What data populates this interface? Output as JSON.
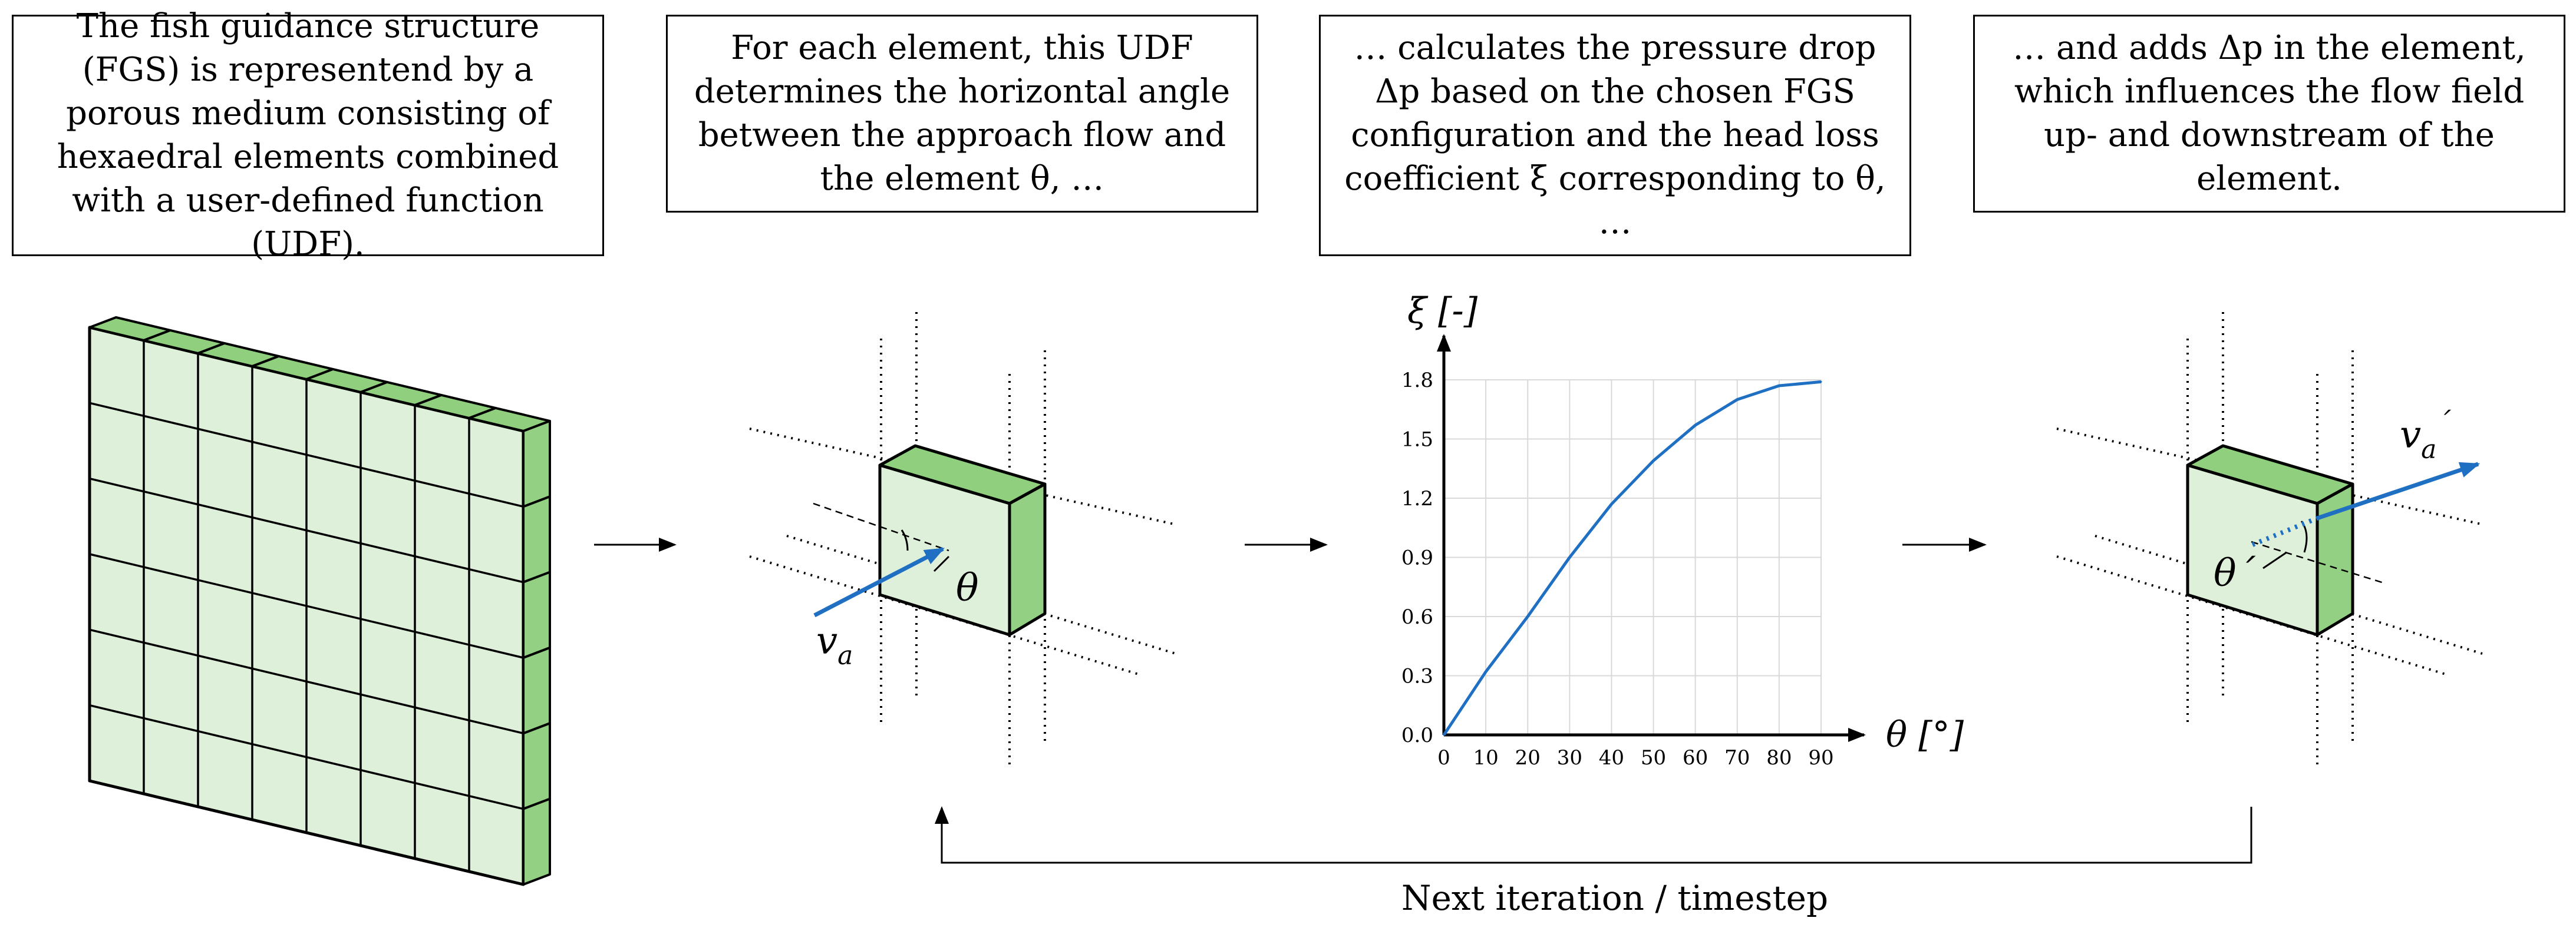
{
  "step_boxes": [
    {
      "text": "The fish guidance structure (FGS) is representend by a porous medium consisting of hexaedral elements combined with a user-defined function (UDF)."
    },
    {
      "text": "For each element, this UDF determines the horizontal angle between the approach flow and the element θ, …"
    },
    {
      "text": "… calculates the pressure drop Δp based on the chosen FGS configuration and the head loss coefficient ξ corresponding to θ, …"
    },
    {
      "text": "… and adds Δp in the element, which influences the flow field up- and downstream of the element."
    }
  ],
  "element_labels": {
    "angle": "θ",
    "velocity": "v",
    "velocity_sub": "a",
    "angle_after": "θ´",
    "velocity_after": "v",
    "velocity_after_sub": "a",
    "velocity_after_sup": "´"
  },
  "loop_label": "Next iteration / timestep",
  "colors": {
    "cell_fill": "#dff0da",
    "cell_top": "#8fcf7e",
    "cell_side": "#93d083",
    "arrow_blue": "#1f6fc2",
    "grid": "#d9d9d9"
  },
  "chart_data": {
    "type": "line",
    "xlabel": "θ [°]",
    "ylabel": "ξ [-]",
    "x": [
      0,
      10,
      20,
      30,
      40,
      50,
      60,
      70,
      80,
      90
    ],
    "y": [
      0.0,
      0.32,
      0.6,
      0.9,
      1.17,
      1.39,
      1.57,
      1.7,
      1.77,
      1.79
    ],
    "xticks": [
      "0",
      "10",
      "20",
      "30",
      "40",
      "50",
      "60",
      "70",
      "80",
      "90"
    ],
    "yticks": [
      "0.0",
      "0.3",
      "0.6",
      "0.9",
      "1.2",
      "1.5",
      "1.8"
    ],
    "xlim": [
      0,
      90
    ],
    "ylim": [
      0,
      1.8
    ],
    "grid": true,
    "series_color": "#1f6fc2"
  }
}
